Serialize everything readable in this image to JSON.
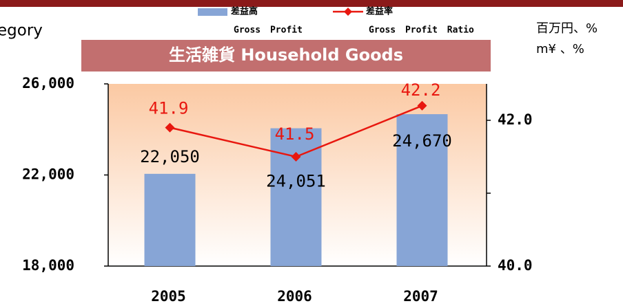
{
  "chart_data": {
    "type": "bar_line",
    "cut_text": "egory",
    "title": "生活雑貨 Household Goods",
    "units": [
      "百万円、%",
      "m¥ 、%"
    ],
    "categories": [
      "2005",
      "2006",
      "2007"
    ],
    "series": [
      {
        "name": "差益高",
        "name_en": "Gross Profit",
        "kind": "bar",
        "color": "#87a5d6",
        "values": [
          22050,
          24051,
          24670
        ],
        "value_labels": [
          "22,050",
          "24,051",
          "24,670"
        ]
      },
      {
        "name": "差益率",
        "name_en": "Gross Profit Ratio",
        "kind": "line",
        "axis": "y2",
        "color": "#e8170f",
        "values": [
          41.9,
          41.5,
          42.2
        ]
      }
    ],
    "ylim": [
      18000,
      26000
    ],
    "yticks": [
      {
        "value": 18000,
        "label": "18,000"
      },
      {
        "value": 22000,
        "label": "22,000"
      },
      {
        "value": 26000,
        "label": "26,000"
      }
    ],
    "y2lim": [
      40.0,
      42.5
    ],
    "y2ticks": [
      {
        "value": 40,
        "label": "40.0"
      },
      {
        "value": 42,
        "label": "42.0"
      }
    ],
    "y2minor_ticks": [
      41
    ]
  }
}
